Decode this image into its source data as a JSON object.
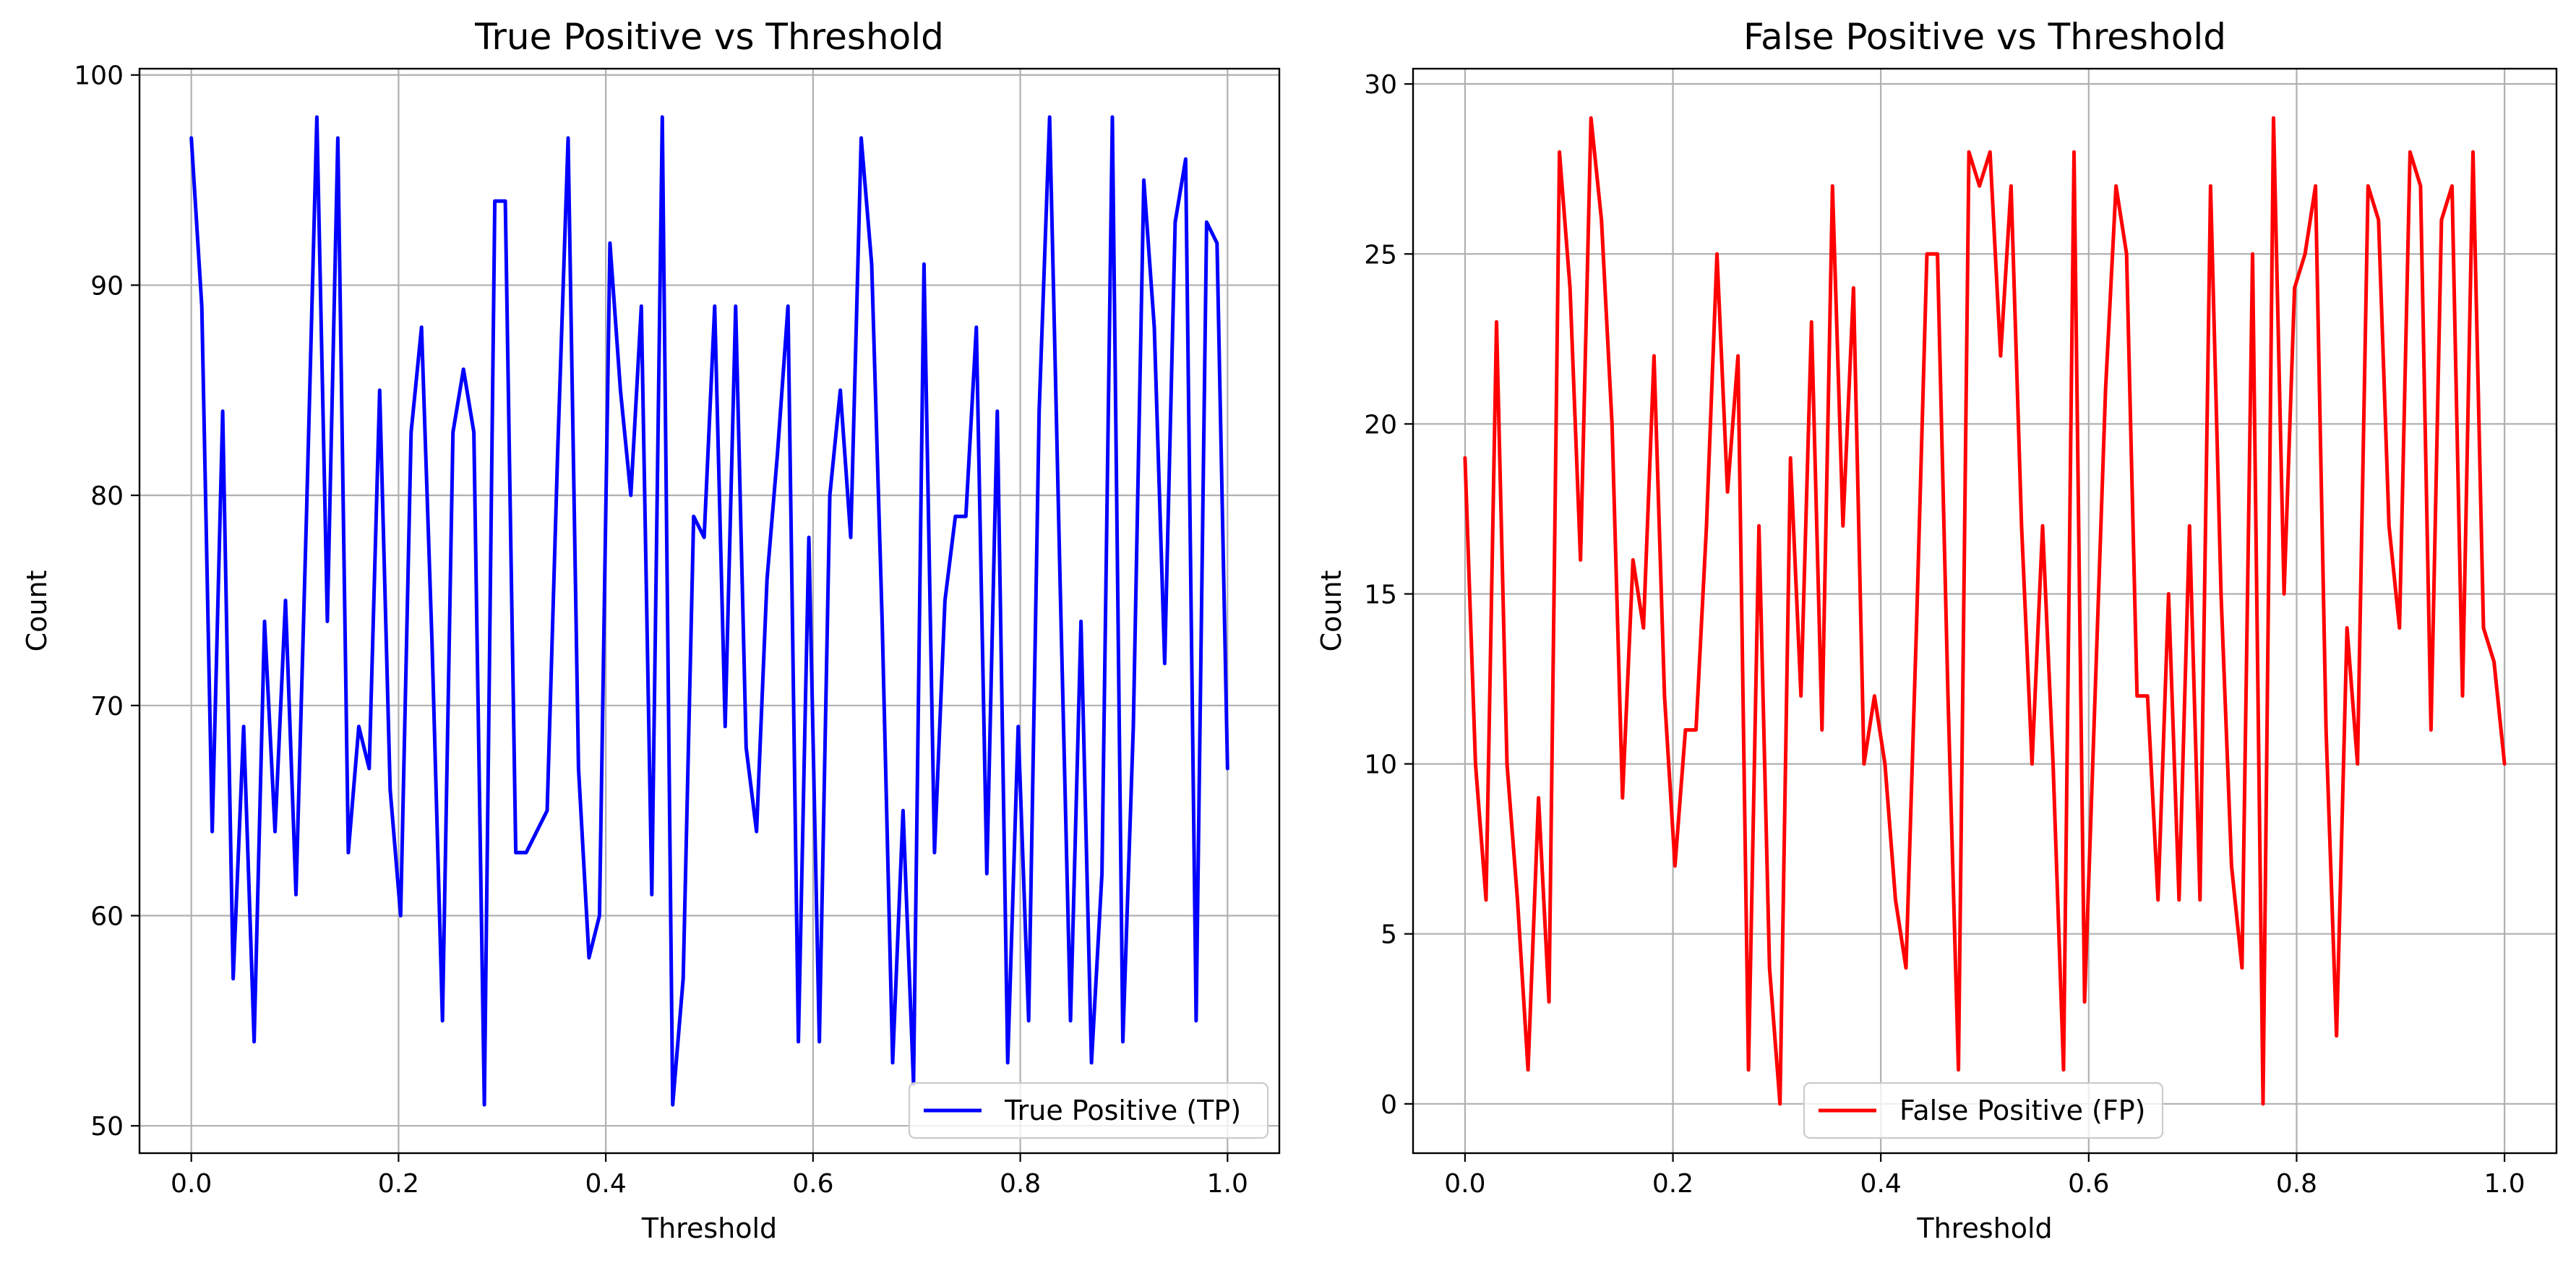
{
  "chart_data": [
    {
      "type": "line",
      "title": "True Positive vs Threshold",
      "xlabel": "Threshold",
      "ylabel": "Count",
      "xlim": [
        -0.05,
        1.05
      ],
      "ylim": [
        48.7,
        100.3
      ],
      "xticks": [
        0.0,
        0.2,
        0.4,
        0.6,
        0.8,
        1.0
      ],
      "xtick_labels": [
        "0.0",
        "0.2",
        "0.4",
        "0.6",
        "0.8",
        "1.0"
      ],
      "yticks": [
        50,
        60,
        70,
        80,
        90,
        100
      ],
      "ytick_labels": [
        "50",
        "60",
        "70",
        "80",
        "90",
        "100"
      ],
      "grid": true,
      "legend_position": "lower-right",
      "series": [
        {
          "name": "True Positive (TP)",
          "color": "#0000ff",
          "x": [
            0.0,
            0.0101,
            0.0202,
            0.0303,
            0.0404,
            0.0505,
            0.0606,
            0.0707,
            0.0808,
            0.0909,
            0.101,
            0.1111,
            0.1212,
            0.1313,
            0.1414,
            0.1515,
            0.1616,
            0.1717,
            0.1818,
            0.1919,
            0.202,
            0.2121,
            0.2222,
            0.2323,
            0.2424,
            0.2525,
            0.2626,
            0.2727,
            0.2828,
            0.2929,
            0.303,
            0.3131,
            0.3232,
            0.3333,
            0.3434,
            0.3535,
            0.3636,
            0.3737,
            0.3838,
            0.3939,
            0.404,
            0.4141,
            0.4242,
            0.4343,
            0.4444,
            0.4545,
            0.4646,
            0.4747,
            0.4848,
            0.4949,
            0.5051,
            0.5152,
            0.5253,
            0.5354,
            0.5455,
            0.5556,
            0.5657,
            0.5758,
            0.5859,
            0.596,
            0.6061,
            0.6162,
            0.6263,
            0.6364,
            0.6465,
            0.6566,
            0.6667,
            0.6768,
            0.6869,
            0.697,
            0.7071,
            0.7172,
            0.7273,
            0.7374,
            0.7475,
            0.7576,
            0.7677,
            0.7778,
            0.7879,
            0.798,
            0.8081,
            0.8182,
            0.8283,
            0.8384,
            0.8485,
            0.8586,
            0.8687,
            0.8788,
            0.8889,
            0.899,
            0.9091,
            0.9192,
            0.9293,
            0.9394,
            0.9495,
            0.9596,
            0.9697,
            0.9798,
            0.9899,
            1.0
          ],
          "y": [
            97,
            89,
            64,
            84,
            57,
            69,
            54,
            74,
            64,
            75,
            61,
            79,
            98,
            74,
            97,
            63,
            69,
            67,
            85,
            66,
            60,
            83,
            88,
            73,
            55,
            83,
            86,
            83,
            51,
            94,
            94,
            63,
            63,
            64,
            65,
            82,
            97,
            67,
            58,
            60,
            92,
            85,
            80,
            89,
            61,
            98,
            51,
            57,
            79,
            78,
            89,
            69,
            89,
            68,
            64,
            76,
            82,
            89,
            54,
            78,
            54,
            80,
            85,
            78,
            97,
            91,
            74,
            53,
            65,
            52,
            91,
            63,
            75,
            79,
            79,
            88,
            62,
            84,
            53,
            69,
            55,
            84,
            98,
            76,
            55,
            74,
            53,
            62,
            98,
            54,
            69,
            95,
            88,
            72,
            93,
            96,
            55,
            93,
            92,
            67
          ]
        }
      ]
    },
    {
      "type": "line",
      "title": "False Positive vs Threshold",
      "xlabel": "Threshold",
      "ylabel": "Count",
      "xlim": [
        -0.05,
        1.05
      ],
      "ylim": [
        -1.45,
        30.45
      ],
      "xticks": [
        0.0,
        0.2,
        0.4,
        0.6,
        0.8,
        1.0
      ],
      "xtick_labels": [
        "0.0",
        "0.2",
        "0.4",
        "0.6",
        "0.8",
        "1.0"
      ],
      "yticks": [
        0,
        5,
        10,
        15,
        20,
        25,
        30
      ],
      "ytick_labels": [
        "0",
        "5",
        "10",
        "15",
        "20",
        "25",
        "30"
      ],
      "grid": true,
      "legend_position": "lower-center",
      "series": [
        {
          "name": "False Positive (FP)",
          "color": "#ff0000",
          "x": [
            0.0,
            0.0101,
            0.0202,
            0.0303,
            0.0404,
            0.0505,
            0.0606,
            0.0707,
            0.0808,
            0.0909,
            0.101,
            0.1111,
            0.1212,
            0.1313,
            0.1414,
            0.1515,
            0.1616,
            0.1717,
            0.1818,
            0.1919,
            0.202,
            0.2121,
            0.2222,
            0.2323,
            0.2424,
            0.2525,
            0.2626,
            0.2727,
            0.2828,
            0.2929,
            0.303,
            0.3131,
            0.3232,
            0.3333,
            0.3434,
            0.3535,
            0.3636,
            0.3737,
            0.3838,
            0.3939,
            0.404,
            0.4141,
            0.4242,
            0.4343,
            0.4444,
            0.4545,
            0.4646,
            0.4747,
            0.4848,
            0.4949,
            0.5051,
            0.5152,
            0.5253,
            0.5354,
            0.5455,
            0.5556,
            0.5657,
            0.5758,
            0.5859,
            0.596,
            0.6061,
            0.6162,
            0.6263,
            0.6364,
            0.6465,
            0.6566,
            0.6667,
            0.6768,
            0.6869,
            0.697,
            0.7071,
            0.7172,
            0.7273,
            0.7374,
            0.7475,
            0.7576,
            0.7677,
            0.7778,
            0.7879,
            0.798,
            0.8081,
            0.8182,
            0.8283,
            0.8384,
            0.8485,
            0.8586,
            0.8687,
            0.8788,
            0.8889,
            0.899,
            0.9091,
            0.9192,
            0.9293,
            0.9394,
            0.9495,
            0.9596,
            0.9697,
            0.9798,
            0.9899,
            1.0
          ],
          "y": [
            19,
            10,
            6,
            23,
            10,
            6,
            1,
            9,
            3,
            28,
            24,
            16,
            29,
            26,
            20,
            9,
            16,
            14,
            22,
            12,
            7,
            11,
            11,
            17,
            25,
            18,
            22,
            1,
            17,
            4,
            0,
            19,
            12,
            23,
            11,
            27,
            17,
            24,
            10,
            12,
            10,
            6,
            4,
            14,
            25,
            25,
            12,
            1,
            28,
            27,
            28,
            22,
            27,
            17,
            10,
            17,
            10,
            1,
            28,
            3,
            12,
            21,
            27,
            25,
            12,
            12,
            6,
            15,
            6,
            17,
            6,
            27,
            15,
            7,
            4,
            25,
            0,
            29,
            15,
            24,
            25,
            27,
            11,
            2,
            14,
            10,
            27,
            26,
            17,
            14,
            28,
            27,
            11,
            26,
            27,
            12,
            28,
            14,
            13,
            10
          ]
        }
      ]
    }
  ]
}
